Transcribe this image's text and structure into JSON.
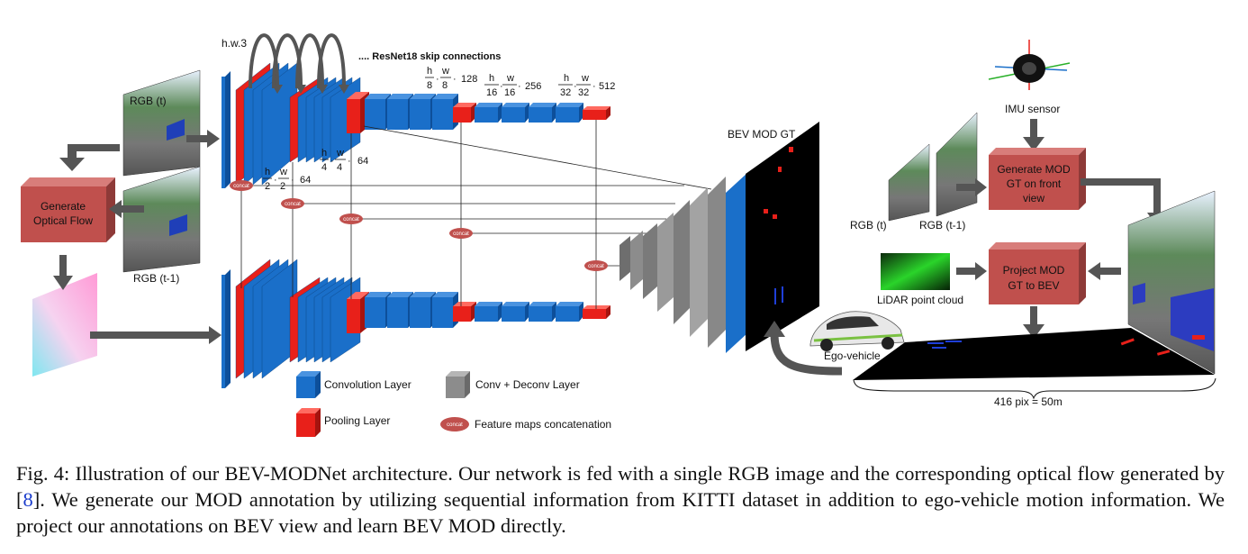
{
  "figure": {
    "labels": {
      "rgb_t": "RGB (t)",
      "rgb_t1": "RGB (t-1)",
      "rgb_t_right": "RGB (t)",
      "rgb_t1_right": "RGB (t-1)",
      "hw3": "h.w.3",
      "skip": ".... ResNet18 skip connections",
      "bev_mod_gt": "BEV MOD GT",
      "imu": "IMU sensor",
      "lidar": "LiDAR point cloud",
      "ego": "Ego-vehicle",
      "scale": "416 pix = 50m",
      "concat": "concat"
    },
    "boxes": {
      "optical_flow": [
        "Generate",
        "Optical Flow"
      ],
      "generate_mod": [
        "Generate MOD",
        "GT on front",
        "view"
      ],
      "project_mod": [
        "Project MOD",
        "GT to BEV"
      ]
    },
    "dims": {
      "d2": {
        "h": "h",
        "w": "w",
        "den": "2",
        "c": "64"
      },
      "d4": {
        "h": "h",
        "w": "w",
        "den": "4",
        "c": "64"
      },
      "d8": {
        "h": "h",
        "w": "w",
        "den": "8",
        "c": "128"
      },
      "d16": {
        "h": "h",
        "w": "w",
        "den": "16",
        "c": "256"
      },
      "d32": {
        "h": "h",
        "w": "w",
        "den": "32",
        "c": "512"
      }
    },
    "legend": {
      "conv": "Convolution Layer",
      "pool": "Pooling Layer",
      "convdeconv": "Conv + Deconv Layer",
      "concat": "Feature maps concatenation"
    },
    "colors": {
      "conv": "#1a6fc9",
      "pool": "#e8201a",
      "gray": "#8c8c8c",
      "box": "#c0504d",
      "concat": "#c0504d",
      "arrow": "#555555"
    }
  },
  "caption": {
    "prefix": "Fig. 4: Illustration of our BEV-MODNet architecture. Our network is fed with a single RGB image and the corresponding optical flow generated by [",
    "ref": "8",
    "suffix": "]. We generate our MOD annotation by utilizing sequential information from KITTI dataset in addition to ego-vehicle motion information. We project our annotations on BEV view and learn BEV MOD directly."
  }
}
